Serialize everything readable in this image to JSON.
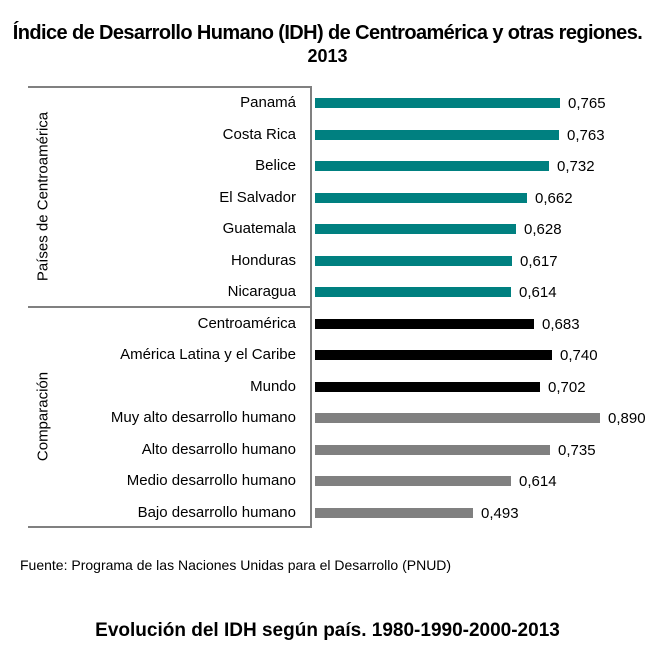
{
  "chart_data": {
    "type": "bar",
    "orientation": "horizontal",
    "title": "Índice de Desarrollo Humano (IDH) de Centroamérica y otras regiones.",
    "subtitle": "2013",
    "xlim": [
      0,
      1
    ],
    "groups": [
      {
        "label": "Países de Centroamérica",
        "items": [
          {
            "category": "Panamá",
            "value": 0.765,
            "label": "0,765",
            "color": "#008080"
          },
          {
            "category": "Costa Rica",
            "value": 0.763,
            "label": "0,763",
            "color": "#008080"
          },
          {
            "category": "Belice",
            "value": 0.732,
            "label": "0,732",
            "color": "#008080"
          },
          {
            "category": "El Salvador",
            "value": 0.662,
            "label": "0,662",
            "color": "#008080"
          },
          {
            "category": "Guatemala",
            "value": 0.628,
            "label": "0,628",
            "color": "#008080"
          },
          {
            "category": "Honduras",
            "value": 0.617,
            "label": "0,617",
            "color": "#008080"
          },
          {
            "category": "Nicaragua",
            "value": 0.614,
            "label": "0,614",
            "color": "#008080"
          }
        ]
      },
      {
        "label": "Comparación",
        "items": [
          {
            "category": "Centroamérica",
            "value": 0.683,
            "label": "0,683",
            "color": "#000000"
          },
          {
            "category": "América Latina y el Caribe",
            "value": 0.74,
            "label": "0,740",
            "color": "#000000"
          },
          {
            "category": "Mundo",
            "value": 0.702,
            "label": "0,702",
            "color": "#000000"
          },
          {
            "category": "Muy alto desarrollo humano",
            "value": 0.89,
            "label": "0,890",
            "color": "#808080"
          },
          {
            "category": "Alto desarrollo humano",
            "value": 0.735,
            "label": "0,735",
            "color": "#808080"
          },
          {
            "category": "Medio desarrollo humano",
            "value": 0.614,
            "label": "0,614",
            "color": "#808080"
          },
          {
            "category": "Bajo desarrollo humano",
            "value": 0.493,
            "label": "0,493",
            "color": "#808080"
          }
        ]
      }
    ]
  },
  "source": "Fuente: Programa de las Naciones Unidas para el Desarrollo (PNUD)",
  "next_title": "Evolución del IDH según país. 1980-1990-2000-2013"
}
